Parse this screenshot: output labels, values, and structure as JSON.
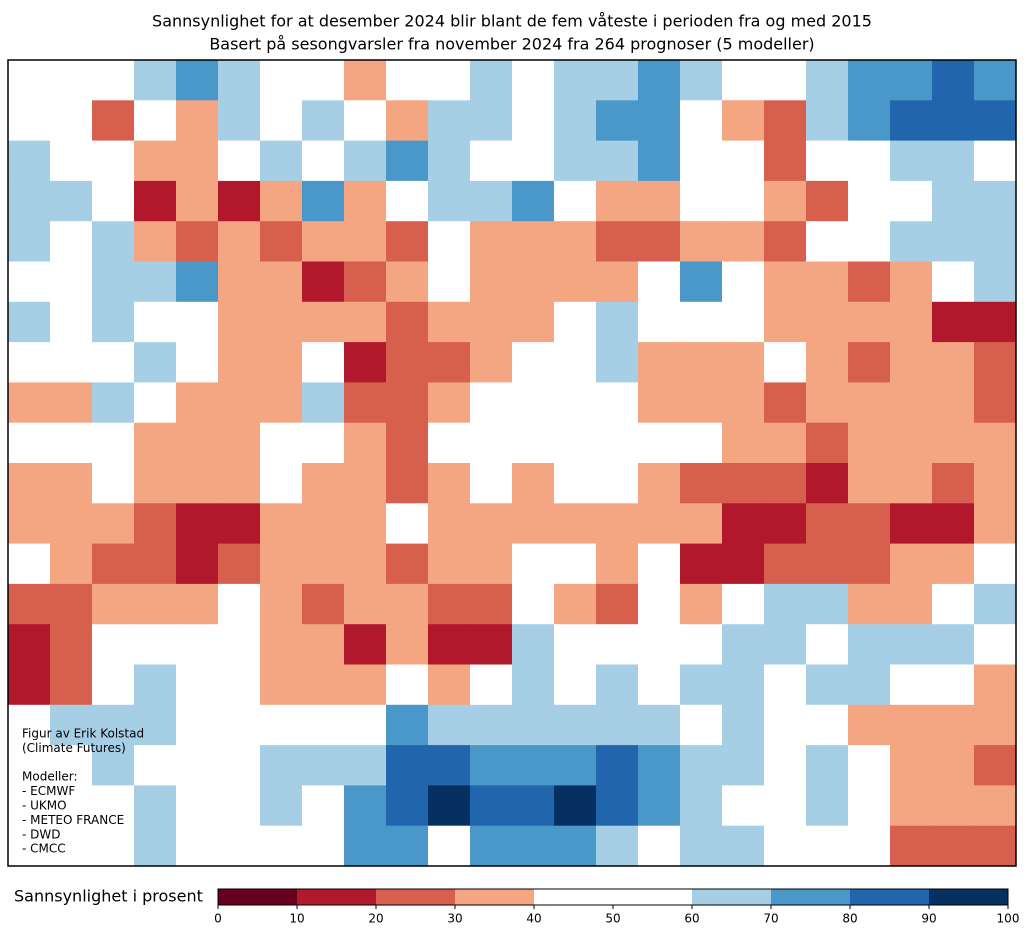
{
  "title": "Sannsynlighet for at desember 2024 blir blant de fem våteste i perioden fra og med 2015",
  "subtitle": "Basert på sesongvarsler fra november 2024 fra 264 prognoser (5 modeller)",
  "credits": [
    "Figur av Erik Kolstad",
    "(Climate Futures)"
  ],
  "models_heading": "Modeller:",
  "models": [
    "- ECMWF",
    "- UKMO",
    "- METEO FRANCE",
    "- DWD",
    "- CMCC"
  ],
  "grid": [
    [
      50,
      50,
      50,
      65,
      75,
      65,
      50,
      50,
      35,
      50,
      50,
      65,
      50,
      65,
      65,
      75,
      65,
      50,
      50,
      65,
      75,
      75,
      85,
      75
    ],
    [
      50,
      50,
      25,
      50,
      35,
      65,
      50,
      65,
      50,
      35,
      65,
      65,
      50,
      65,
      75,
      75,
      50,
      35,
      25,
      65,
      75,
      85,
      85,
      85
    ],
    [
      65,
      50,
      50,
      35,
      35,
      50,
      65,
      50,
      65,
      75,
      65,
      50,
      50,
      65,
      65,
      75,
      50,
      50,
      25,
      50,
      50,
      65,
      65,
      50
    ],
    [
      65,
      65,
      50,
      15,
      35,
      15,
      35,
      75,
      35,
      50,
      65,
      65,
      75,
      50,
      35,
      35,
      50,
      50,
      35,
      25,
      50,
      50,
      65,
      65
    ],
    [
      65,
      50,
      65,
      35,
      25,
      35,
      25,
      35,
      35,
      25,
      50,
      35,
      35,
      35,
      25,
      25,
      35,
      35,
      25,
      50,
      50,
      65,
      65,
      65
    ],
    [
      50,
      50,
      65,
      65,
      75,
      35,
      35,
      15,
      25,
      35,
      50,
      35,
      35,
      35,
      35,
      50,
      75,
      50,
      35,
      35,
      25,
      35,
      50,
      65
    ],
    [
      65,
      50,
      65,
      50,
      50,
      35,
      35,
      35,
      35,
      25,
      35,
      35,
      35,
      50,
      65,
      50,
      50,
      50,
      35,
      35,
      35,
      35,
      15,
      15
    ],
    [
      50,
      50,
      50,
      65,
      50,
      35,
      35,
      50,
      15,
      25,
      25,
      35,
      50,
      50,
      65,
      35,
      35,
      35,
      50,
      35,
      25,
      35,
      35,
      25
    ],
    [
      35,
      35,
      65,
      50,
      35,
      35,
      35,
      65,
      25,
      25,
      35,
      50,
      50,
      50,
      50,
      35,
      35,
      35,
      25,
      35,
      35,
      35,
      35,
      25
    ],
    [
      50,
      50,
      50,
      35,
      35,
      35,
      50,
      50,
      35,
      25,
      50,
      50,
      50,
      50,
      50,
      50,
      50,
      35,
      35,
      25,
      35,
      35,
      35,
      35
    ],
    [
      35,
      35,
      50,
      35,
      35,
      35,
      50,
      35,
      35,
      25,
      35,
      50,
      35,
      50,
      50,
      35,
      25,
      25,
      25,
      15,
      35,
      35,
      25,
      35
    ],
    [
      35,
      35,
      35,
      25,
      15,
      15,
      35,
      35,
      35,
      50,
      35,
      35,
      35,
      35,
      35,
      35,
      35,
      15,
      15,
      25,
      25,
      15,
      15,
      35
    ],
    [
      50,
      35,
      25,
      25,
      15,
      25,
      35,
      35,
      35,
      25,
      35,
      35,
      50,
      50,
      35,
      50,
      15,
      15,
      25,
      25,
      25,
      35,
      35,
      50
    ],
    [
      25,
      25,
      35,
      35,
      35,
      50,
      35,
      25,
      35,
      35,
      25,
      25,
      50,
      35,
      25,
      50,
      35,
      50,
      65,
      65,
      35,
      35,
      50,
      65
    ],
    [
      15,
      25,
      50,
      50,
      50,
      50,
      35,
      35,
      15,
      35,
      15,
      15,
      65,
      50,
      50,
      50,
      50,
      65,
      65,
      50,
      65,
      65,
      65,
      50
    ],
    [
      15,
      25,
      50,
      65,
      50,
      50,
      35,
      35,
      35,
      50,
      35,
      50,
      65,
      50,
      65,
      50,
      65,
      65,
      50,
      65,
      65,
      50,
      50,
      35
    ],
    [
      50,
      65,
      65,
      65,
      50,
      50,
      50,
      50,
      50,
      75,
      65,
      65,
      65,
      65,
      65,
      65,
      50,
      65,
      50,
      50,
      35,
      35,
      35,
      35
    ],
    [
      50,
      50,
      65,
      50,
      50,
      50,
      65,
      65,
      65,
      85,
      85,
      75,
      75,
      75,
      85,
      75,
      65,
      65,
      50,
      65,
      50,
      35,
      35,
      25
    ],
    [
      50,
      50,
      50,
      65,
      50,
      50,
      65,
      50,
      75,
      85,
      95,
      85,
      85,
      95,
      85,
      75,
      65,
      50,
      50,
      65,
      50,
      35,
      35,
      35
    ],
    [
      50,
      50,
      50,
      65,
      50,
      50,
      50,
      50,
      75,
      75,
      50,
      75,
      75,
      75,
      65,
      50,
      65,
      65,
      50,
      50,
      50,
      25,
      25,
      25
    ]
  ],
  "colorbar": {
    "label": "Sannsynlighet i prosent",
    "bounds": [
      0,
      10,
      20,
      30,
      40,
      60,
      70,
      80,
      90,
      100
    ],
    "colors": [
      "#67001f",
      "#b2182b",
      "#d6604d",
      "#f4a582",
      "#ffffff",
      "#a6cfe6",
      "#4a98c9",
      "#2166ac",
      "#053061"
    ],
    "xlim": [
      0,
      100
    ],
    "ticks": [
      0,
      10,
      20,
      30,
      40,
      50,
      60,
      70,
      80,
      90,
      100
    ]
  }
}
